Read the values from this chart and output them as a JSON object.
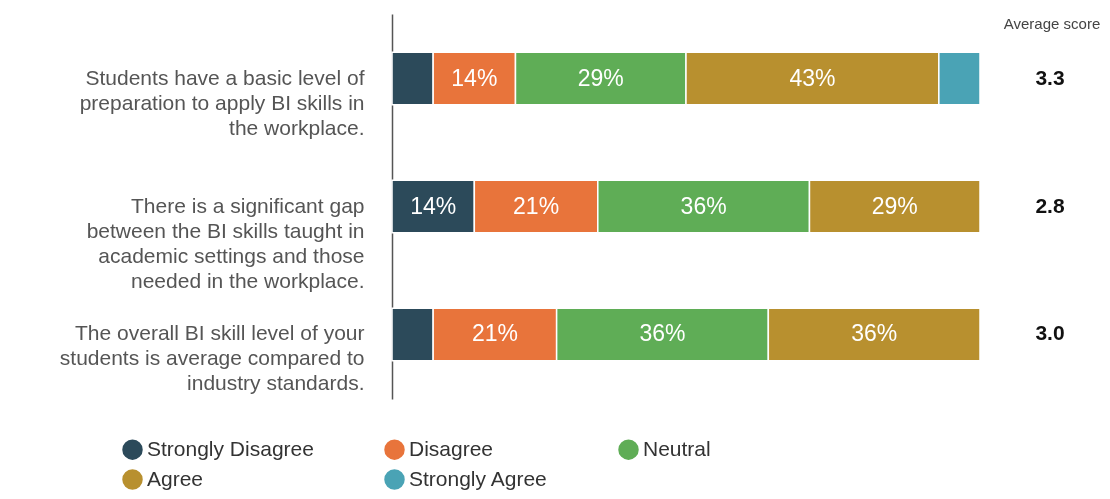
{
  "chart_data": {
    "type": "bar",
    "orientation": "horizontal",
    "stacked": true,
    "categories": [
      "Students have a basic level of preparation to apply BI skills in the workplace.",
      "There is a significant gap between the BI skills taught in academic settings and those needed in the workplace.",
      "The overall BI skill level of your students is average compared to industry standards."
    ],
    "series": [
      {
        "name": "Strongly Disagree",
        "color": "#2c4a5a",
        "values": [
          7,
          14,
          7
        ],
        "value_labels": [
          null,
          "14%",
          null
        ]
      },
      {
        "name": "Disagree",
        "color": "#e8743b",
        "values": [
          14,
          21,
          21
        ],
        "value_labels": [
          "14%",
          "21%",
          "21%"
        ]
      },
      {
        "name": "Neutral",
        "color": "#5fad56",
        "values": [
          29,
          36,
          36
        ],
        "value_labels": [
          "29%",
          "36%",
          "36%"
        ]
      },
      {
        "name": "Agree",
        "color": "#b8902f",
        "values": [
          43,
          29,
          36
        ],
        "value_labels": [
          "43%",
          "29%",
          "36%"
        ]
      },
      {
        "name": "Strongly Agree",
        "color": "#4aa3b5",
        "values": [
          7,
          null,
          null
        ],
        "value_labels": [
          null,
          null,
          null
        ]
      }
    ],
    "xlim": [
      0,
      100
    ],
    "tick_labels": "y",
    "legend": "bottom",
    "annotations": [
      "Average score",
      "3.3",
      "2.8",
      "3.0"
    ]
  }
}
